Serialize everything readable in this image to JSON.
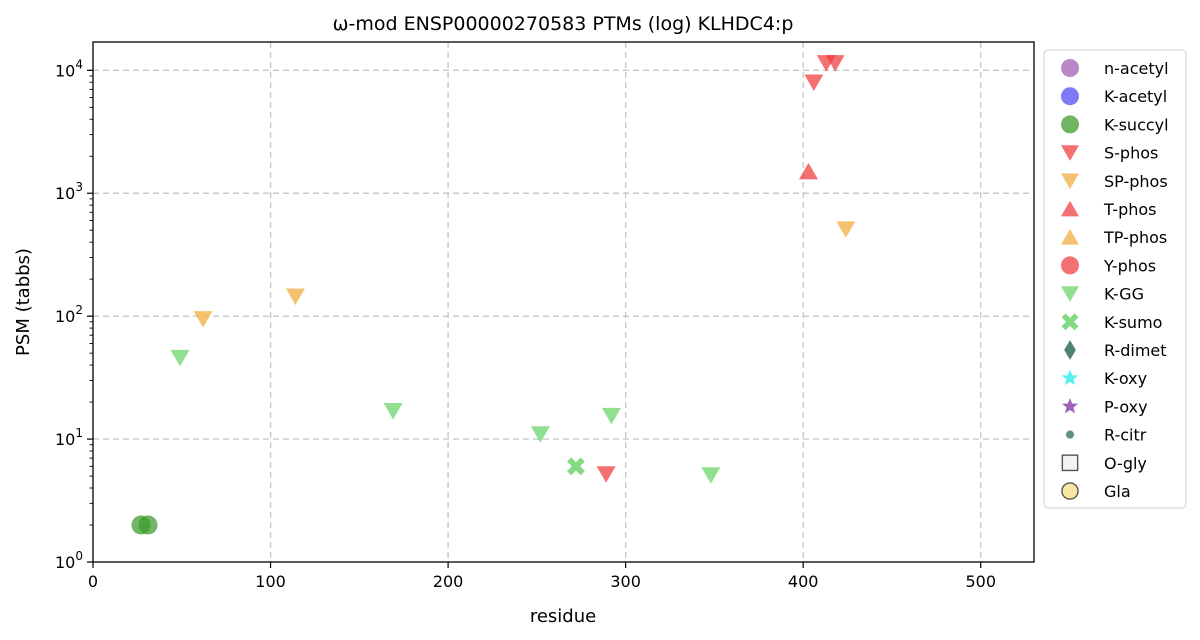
{
  "chart_data": {
    "type": "scatter",
    "title": "ω-mod ENSP00000270583 PTMs (log) KLHDC4:p",
    "xlabel": "residue",
    "ylabel": "PSM (tabbs)",
    "xlim": [
      0,
      530
    ],
    "ylim": [
      1,
      17000
    ],
    "yscale": "log",
    "grid": true,
    "legend_position": "outside-right",
    "x_ticks": [
      {
        "value": 0,
        "label": "0"
      },
      {
        "value": 100,
        "label": "100"
      },
      {
        "value": 200,
        "label": "200"
      },
      {
        "value": 300,
        "label": "300"
      },
      {
        "value": 400,
        "label": "400"
      },
      {
        "value": 500,
        "label": "500"
      }
    ],
    "y_ticks": [
      {
        "value": 1,
        "base": "10",
        "exp": "0"
      },
      {
        "value": 10,
        "base": "10",
        "exp": "1"
      },
      {
        "value": 100,
        "base": "10",
        "exp": "2"
      },
      {
        "value": 1000,
        "base": "10",
        "exp": "3"
      },
      {
        "value": 10000,
        "base": "10",
        "exp": "4"
      }
    ],
    "series": [
      {
        "name": "n-acetyl",
        "marker": "circle",
        "color": "#9b59b6",
        "points": []
      },
      {
        "name": "K-acetyl",
        "marker": "circle",
        "color": "#4a4af5",
        "points": []
      },
      {
        "name": "K-succyl",
        "marker": "circle",
        "color": "#3a9a2a",
        "points": [
          [
            27,
            2
          ],
          [
            31,
            2
          ]
        ]
      },
      {
        "name": "S-phos",
        "marker": "triangle-down",
        "color": "#f03a3a",
        "points": [
          [
            289,
            5.2
          ],
          [
            406,
            8000
          ],
          [
            413,
            11500
          ],
          [
            418,
            11500
          ]
        ]
      },
      {
        "name": "SP-phos",
        "marker": "triangle-down",
        "color": "#f0ac3c",
        "points": [
          [
            62,
            95
          ],
          [
            114,
            145
          ],
          [
            424,
            510
          ]
        ]
      },
      {
        "name": "T-phos",
        "marker": "triangle-up",
        "color": "#f03a3a",
        "points": [
          [
            403,
            1500
          ]
        ]
      },
      {
        "name": "TP-phos",
        "marker": "triangle-up",
        "color": "#f0ac3c",
        "points": []
      },
      {
        "name": "Y-phos",
        "marker": "circle",
        "color": "#f03a3a",
        "points": []
      },
      {
        "name": "K-GG",
        "marker": "triangle-down",
        "color": "#66d366",
        "points": [
          [
            49,
            46
          ],
          [
            169,
            17
          ],
          [
            252,
            11
          ],
          [
            292,
            15.5
          ],
          [
            348,
            5.1
          ]
        ]
      },
      {
        "name": "K-sumo",
        "marker": "x",
        "color": "#66d366",
        "points": [
          [
            272,
            6
          ]
        ]
      },
      {
        "name": "R-dimet",
        "marker": "diamond",
        "color": "#2f6b57",
        "points": []
      },
      {
        "name": "K-oxy",
        "marker": "star",
        "color": "#33f0f0",
        "points": []
      },
      {
        "name": "P-oxy",
        "marker": "star",
        "color": "#8e44ad",
        "points": []
      },
      {
        "name": "R-citr",
        "marker": "small-circle",
        "color": "#3f7a5c",
        "points": []
      },
      {
        "name": "O-gly",
        "marker": "square-open",
        "color": "#555555",
        "points": []
      },
      {
        "name": "Gla",
        "marker": "circle-open",
        "color": "#f7e6a0",
        "points": []
      }
    ]
  }
}
